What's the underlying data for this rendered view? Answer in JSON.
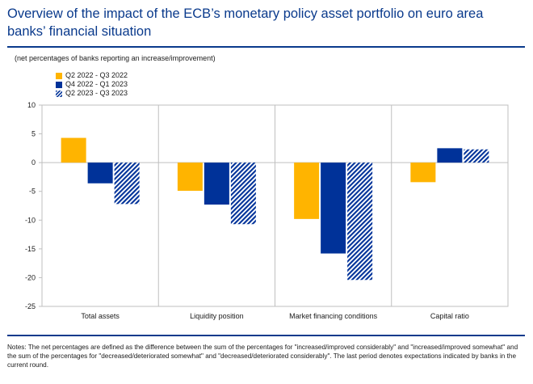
{
  "header": {
    "title": "Overview of the impact of the ECB’s monetary policy asset portfolio on euro area banks’ financial situation",
    "subtitle": "(net percentages of banks reporting an increase/improvement)"
  },
  "footer": {
    "notes": "Notes: The net percentages are defined as the difference between the sum of the percentages for \"increased/improved considerably\" and \"increased/improved somewhat\" and the sum of the percentages for \"decreased/deteriorated somewhat\" and \"decreased/deteriorated considerably\". The last period denotes expectations indicated by banks in the current round."
  },
  "colors": {
    "series1": "#ffb400",
    "series2": "#003299",
    "series3_stripe": "#003299",
    "rule": "#0a3a8c"
  },
  "chart_data": {
    "type": "bar",
    "categories": [
      "Total assets",
      "Liquidity position",
      "Market financing conditions",
      "Capital ratio"
    ],
    "series": [
      {
        "name": "Q2 2022 - Q3 2022",
        "values": [
          4.3,
          -4.9,
          -9.8,
          -3.4
        ]
      },
      {
        "name": "Q4 2022 - Q1 2023",
        "values": [
          -3.6,
          -7.3,
          -15.8,
          2.5
        ]
      },
      {
        "name": "Q2 2023 - Q3 2023",
        "values": [
          -7.2,
          -10.7,
          -20.4,
          2.3
        ]
      }
    ],
    "ylim": [
      -25,
      10
    ],
    "yticks": [
      "10",
      "5",
      "0",
      "-5",
      "-10",
      "-15",
      "-20",
      "-25"
    ],
    "legend_position": "top-left",
    "grid": false
  }
}
